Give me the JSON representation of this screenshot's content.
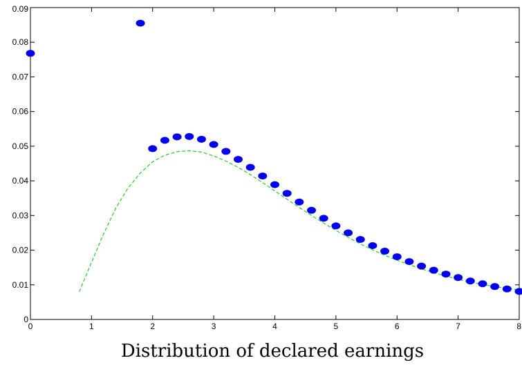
{
  "chart_data": {
    "type": "scatter",
    "title": "",
    "xlabel": "Distribution of declared earnings",
    "ylabel": "",
    "xlim": [
      0,
      8
    ],
    "ylim": [
      0,
      0.09
    ],
    "x_ticks": [
      "0",
      "1",
      "2",
      "3",
      "4",
      "5",
      "6",
      "7",
      "8"
    ],
    "y_ticks": [
      "0",
      "0.01",
      "0.02",
      "0.03",
      "0.04",
      "0.05",
      "0.06",
      "0.07",
      "0.08",
      "0.09"
    ],
    "grid": false,
    "legend": "none",
    "series": [
      {
        "style": "points",
        "color": "#0000ee",
        "x": [
          0,
          1.8,
          2.0,
          2.2,
          2.4,
          2.6,
          2.8,
          3.0,
          3.2,
          3.4,
          3.6,
          3.8,
          4.0,
          4.2,
          4.4,
          4.6,
          4.8,
          5.0,
          5.2,
          5.4,
          5.6,
          5.8,
          6.0,
          6.2,
          6.4,
          6.6,
          6.8,
          7.0,
          7.2,
          7.4,
          7.6,
          7.8,
          8.0
        ],
        "y": [
          0.0768,
          0.0855,
          0.0493,
          0.0517,
          0.0527,
          0.0528,
          0.052,
          0.0505,
          0.0485,
          0.0462,
          0.0439,
          0.0414,
          0.0389,
          0.0364,
          0.0339,
          0.0315,
          0.0292,
          0.027,
          0.025,
          0.0231,
          0.0213,
          0.0197,
          0.0181,
          0.0167,
          0.0154,
          0.0142,
          0.0131,
          0.0121,
          0.0111,
          0.0103,
          0.0095,
          0.0088,
          0.0081
        ]
      },
      {
        "style": "dashed-line",
        "color": "#22cc22",
        "x": [
          0.8,
          1.0,
          1.2,
          1.4,
          1.6,
          1.8,
          2.0,
          2.2,
          2.4,
          2.6,
          2.8,
          3.0,
          3.2,
          3.4,
          3.6,
          3.8,
          4.0,
          4.2,
          4.4,
          4.6,
          4.8,
          5.0,
          5.2,
          5.4,
          5.6,
          5.8,
          6.0,
          6.2,
          6.4,
          6.6,
          6.8,
          7.0,
          7.2,
          7.4,
          7.6,
          7.8,
          8.0
        ],
        "y": [
          0.008,
          0.0165,
          0.0248,
          0.0322,
          0.038,
          0.0423,
          0.0455,
          0.0474,
          0.0484,
          0.0487,
          0.0483,
          0.0472,
          0.0457,
          0.0439,
          0.0418,
          0.0395,
          0.0371,
          0.0347,
          0.0323,
          0.03,
          0.0278,
          0.0257,
          0.0237,
          0.0218,
          0.0201,
          0.0185,
          0.0171,
          0.0158,
          0.0146,
          0.0135,
          0.0125,
          0.0116,
          0.0108,
          0.0101,
          0.0095,
          0.009,
          0.0085
        ]
      }
    ]
  }
}
